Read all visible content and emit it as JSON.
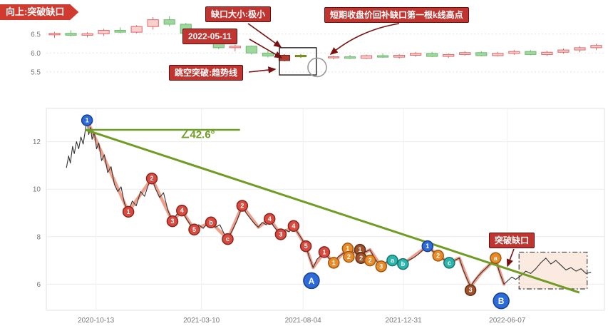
{
  "banner": {
    "text": "向上:突破缺口"
  },
  "top_annotations": {
    "gap_size": "缺口大小:极小",
    "date": "2022-05-11",
    "short_term_note": "短期收盘价回补缺口第一根k线高点",
    "gap_breakthrough": "跳空突破:趋势线"
  },
  "bottom_annotations": {
    "breakout_gap": "突破缺口"
  },
  "colors": {
    "annotation_bg": "#c13530",
    "annotation_border": "#5f1010",
    "candle_up": [
      "#f8d0d0",
      "#e06666"
    ],
    "candle_down": [
      "#9fd89f",
      "#6fb96f"
    ],
    "candle_dark": [
      "#b03a2e",
      "#7b241c"
    ],
    "candle_olive": [
      "#98a832",
      "#6f7d1f"
    ],
    "wave": "#f0957d",
    "price": "#333333",
    "trend": "#6f9c23",
    "marker_red": [
      "#d84b40",
      "#8e221a"
    ],
    "marker_orange": [
      "#e88c2a",
      "#a3560e"
    ],
    "marker_blue": [
      "#2d6bd8",
      "#173f8f"
    ],
    "marker_teal": [
      "#2ab5ad",
      "#15756f"
    ],
    "marker_maroon": [
      "#a0522d",
      "#5e2c12"
    ],
    "gap_box_fill": "#f7d9c4"
  },
  "chart_data": [
    {
      "type": "candlestick",
      "title": "daily k-line with breakaway gap",
      "ylim": [
        4.95,
        7.25
      ],
      "yticks": [
        5.5,
        6.0,
        6.5
      ],
      "ytick_decimals": 1,
      "ohlc_order": [
        "open",
        "high",
        "low",
        "close"
      ],
      "candles": [
        [
          6.48,
          6.56,
          6.4,
          6.52
        ],
        [
          6.52,
          6.6,
          6.44,
          6.47
        ],
        [
          6.47,
          6.55,
          6.41,
          6.51
        ],
        [
          6.51,
          6.64,
          6.45,
          6.6
        ],
        [
          6.6,
          6.68,
          6.52,
          6.55
        ],
        [
          6.55,
          6.74,
          6.52,
          6.7
        ],
        [
          6.7,
          6.95,
          6.62,
          6.88
        ],
        [
          6.88,
          6.97,
          6.7,
          6.76
        ],
        [
          6.76,
          6.8,
          6.48,
          6.52
        ],
        [
          6.52,
          6.56,
          6.24,
          6.28
        ],
        [
          6.28,
          6.34,
          6.1,
          6.14
        ],
        [
          6.14,
          6.22,
          6.04,
          6.18
        ],
        [
          6.18,
          6.2,
          5.96,
          6.0
        ],
        [
          6.0,
          6.06,
          5.88,
          5.92
        ],
        {
          "ohlc": [
            5.94,
            5.97,
            5.78,
            5.8
          ],
          "color": "dark"
        },
        {
          "ohlc": [
            5.9,
            5.97,
            5.87,
            5.94
          ],
          "color": "olive"
        },
        null,
        [
          5.88,
          5.93,
          5.83,
          5.9
        ],
        [
          5.9,
          5.95,
          5.84,
          5.86
        ],
        [
          5.86,
          5.96,
          5.84,
          5.93
        ],
        [
          5.93,
          5.99,
          5.87,
          5.89
        ],
        [
          5.89,
          5.97,
          5.85,
          5.94
        ],
        [
          5.94,
          6.03,
          5.9,
          5.99
        ],
        [
          5.99,
          6.03,
          5.89,
          5.91
        ],
        [
          5.91,
          5.99,
          5.87,
          5.96
        ],
        [
          5.96,
          6.05,
          5.93,
          6.01
        ],
        [
          6.01,
          6.05,
          5.91,
          5.93
        ],
        [
          5.93,
          6.03,
          5.91,
          5.99
        ],
        [
          5.99,
          6.08,
          5.95,
          6.04
        ],
        [
          6.04,
          6.08,
          5.94,
          5.96
        ],
        [
          5.96,
          6.06,
          5.92,
          6.02
        ],
        [
          6.02,
          6.12,
          5.98,
          6.08
        ],
        [
          6.08,
          6.18,
          6.02,
          6.14
        ],
        [
          6.14,
          6.24,
          6.08,
          6.2
        ]
      ],
      "highlight_rect": {
        "slot1": 14.2,
        "slot2": 16.45,
        "v_top": 6.14,
        "v_bot": 5.42
      },
      "highlight_circle": {
        "slot": 16,
        "v": 5.62,
        "r": 13
      }
    },
    {
      "type": "line",
      "title": "weekly trend with elliott wave markers",
      "ylim": [
        4.9,
        13.4
      ],
      "yticks": [
        6,
        8,
        10,
        12
      ],
      "ytick_decimals": 0,
      "xticks": [
        {
          "t": 8.9,
          "label": "2020-10-13"
        },
        {
          "t": 27.8,
          "label": "2021-03-10"
        },
        {
          "t": 46.0,
          "label": "2021-08-04"
        },
        {
          "t": 64.0,
          "label": "2021-12-31"
        },
        {
          "t": 82.6,
          "label": "2022-06-07"
        }
      ],
      "price": [
        [
          3.6,
          10.9
        ],
        [
          4.0,
          11.4
        ],
        [
          4.3,
          11.1
        ],
        [
          4.7,
          11.8
        ],
        [
          5.0,
          11.5
        ],
        [
          5.4,
          12.0
        ],
        [
          5.8,
          11.7
        ],
        [
          6.2,
          12.2
        ],
        [
          6.6,
          11.9
        ],
        [
          7.0,
          12.5
        ],
        [
          7.3,
          12.9
        ],
        [
          7.6,
          12.3
        ],
        [
          7.9,
          12.6
        ],
        [
          8.2,
          12.1
        ],
        [
          8.6,
          12.4
        ],
        [
          9.0,
          11.7
        ],
        [
          9.4,
          11.95
        ],
        [
          9.9,
          11.2
        ],
        [
          10.4,
          11.45
        ],
        [
          11.0,
          10.7
        ],
        [
          11.6,
          10.95
        ],
        [
          12.2,
          10.2
        ],
        [
          12.8,
          9.9
        ],
        [
          13.4,
          10.1
        ],
        [
          14.0,
          9.4
        ],
        [
          14.7,
          9.05
        ],
        [
          15.4,
          9.5
        ],
        [
          16.1,
          9.3
        ],
        [
          16.9,
          9.9
        ],
        [
          17.6,
          9.7
        ],
        [
          18.3,
          10.2
        ],
        [
          18.9,
          10.45
        ],
        [
          19.6,
          10.0
        ],
        [
          20.3,
          9.65
        ],
        [
          21.0,
          9.85
        ],
        [
          21.8,
          9.1
        ],
        [
          22.6,
          8.65
        ],
        [
          23.4,
          8.95
        ],
        [
          24.3,
          9.1
        ],
        [
          25.1,
          8.75
        ],
        [
          25.8,
          8.5
        ],
        [
          26.5,
          8.3
        ],
        [
          27.3,
          8.5
        ],
        [
          28.1,
          8.35
        ],
        [
          28.8,
          8.55
        ],
        [
          29.5,
          8.6
        ],
        [
          30.3,
          8.4
        ],
        [
          31.1,
          8.5
        ],
        [
          31.8,
          8.15
        ],
        [
          32.5,
          7.9
        ],
        [
          33.3,
          8.25
        ],
        [
          34.2,
          8.7
        ],
        [
          35.1,
          9.3
        ],
        [
          35.8,
          9.0
        ],
        [
          36.6,
          8.75
        ],
        [
          37.3,
          8.55
        ],
        [
          38.0,
          8.4
        ],
        [
          38.7,
          8.6
        ],
        [
          39.4,
          8.5
        ],
        [
          40.0,
          8.75
        ],
        [
          40.7,
          8.45
        ],
        [
          41.4,
          8.25
        ],
        [
          42.0,
          8.1
        ],
        [
          42.8,
          8.3
        ],
        [
          43.5,
          8.2
        ],
        [
          44.3,
          8.45
        ],
        [
          45.1,
          8.15
        ],
        [
          45.8,
          7.9
        ],
        [
          46.5,
          7.6
        ],
        [
          47.1,
          7.15
        ],
        [
          47.8,
          6.7
        ],
        [
          48.5,
          7.05
        ],
        [
          49.2,
          7.2
        ],
        [
          49.8,
          7.35
        ],
        [
          50.6,
          7.1
        ],
        [
          51.5,
          6.9
        ],
        [
          52.3,
          7.15
        ],
        [
          53.2,
          7.3
        ],
        [
          54.0,
          7.5
        ],
        [
          54.8,
          7.3
        ],
        [
          55.5,
          7.4
        ],
        [
          56.2,
          7.2
        ],
        [
          57.1,
          7.35
        ],
        [
          58.0,
          7.45
        ],
        [
          58.7,
          7.15
        ],
        [
          59.4,
          6.9
        ],
        [
          60.0,
          6.75
        ],
        [
          60.7,
          6.9
        ],
        [
          61.4,
          7.0
        ],
        [
          62.0,
          7.05
        ],
        [
          62.9,
          6.95
        ],
        [
          63.9,
          6.85
        ],
        [
          64.8,
          7.0
        ],
        [
          65.7,
          7.1
        ],
        [
          66.6,
          7.25
        ],
        [
          67.5,
          7.45
        ],
        [
          68.3,
          7.6
        ],
        [
          69.2,
          7.4
        ],
        [
          70.2,
          7.2
        ],
        [
          71.2,
          7.05
        ],
        [
          72.2,
          6.9
        ],
        [
          73.1,
          7.0
        ],
        [
          74.0,
          7.1
        ],
        [
          74.7,
          6.6
        ],
        [
          75.4,
          6.2
        ],
        [
          76.0,
          5.9
        ],
        [
          76.7,
          6.15
        ],
        [
          77.4,
          6.35
        ],
        [
          78.0,
          6.5
        ],
        [
          78.9,
          6.7
        ],
        [
          79.7,
          6.9
        ],
        [
          80.5,
          7.05
        ],
        [
          81.2,
          6.5
        ],
        [
          82.0,
          6.0
        ],
        [
          82.7,
          6.15
        ],
        [
          83.4,
          6.3
        ],
        [
          84.1,
          6.2
        ],
        [
          85.0,
          6.35
        ],
        [
          85.9,
          6.55
        ],
        [
          86.8,
          6.45
        ],
        [
          87.7,
          6.65
        ],
        [
          88.6,
          6.9
        ],
        [
          89.5,
          7.1
        ],
        [
          90.4,
          6.85
        ],
        [
          91.3,
          7.0
        ],
        [
          92.2,
          6.8
        ],
        [
          93.1,
          6.6
        ],
        [
          94.0,
          6.7
        ],
        [
          94.9,
          6.55
        ],
        [
          95.8,
          6.65
        ],
        [
          96.7,
          6.45
        ],
        [
          97.6,
          6.5
        ]
      ],
      "wave": [
        [
          7.3,
          12.9
        ],
        [
          14.7,
          9.05
        ],
        [
          18.9,
          10.45
        ],
        [
          22.6,
          8.65
        ],
        [
          24.3,
          9.1
        ],
        [
          26.5,
          8.3
        ],
        [
          29.5,
          8.6
        ],
        [
          32.5,
          7.9
        ],
        [
          35.1,
          9.3
        ],
        [
          38.0,
          8.4
        ],
        [
          40.0,
          8.75
        ],
        [
          42.0,
          8.1
        ],
        [
          44.3,
          8.45
        ],
        [
          46.5,
          7.6
        ],
        [
          47.8,
          6.7
        ],
        [
          49.8,
          7.35
        ],
        [
          51.5,
          6.9
        ],
        [
          54.0,
          7.5
        ],
        [
          56.2,
          7.2
        ],
        [
          58.0,
          7.45
        ],
        [
          60.0,
          6.75
        ],
        [
          62.0,
          7.05
        ],
        [
          63.9,
          6.85
        ],
        [
          68.3,
          7.6
        ],
        [
          70.2,
          7.2
        ],
        [
          72.2,
          6.9
        ],
        [
          74.0,
          7.1
        ],
        [
          76.0,
          5.9
        ],
        [
          78.0,
          6.5
        ],
        [
          80.5,
          7.05
        ],
        [
          82.0,
          6.0
        ]
      ],
      "trendline": {
        "t1": 7.0,
        "v1": 12.5,
        "t2": 95.5,
        "v2": 5.65
      },
      "baseline": {
        "t1": 7.0,
        "t2": 34.7,
        "v": 12.5
      },
      "angle": {
        "t": 24.0,
        "v": 12.15,
        "text": "∠42.6°"
      },
      "gap_box": {
        "t1": 84.7,
        "t2": 96.9,
        "v_top": 7.35,
        "v_bot": 5.8
      },
      "markers": [
        {
          "t": 7.3,
          "v": 12.9,
          "label": "1",
          "c": "blue"
        },
        {
          "t": 14.7,
          "v": 9.05,
          "label": "1",
          "c": "red"
        },
        {
          "t": 18.9,
          "v": 10.45,
          "label": "2",
          "c": "red"
        },
        {
          "t": 22.6,
          "v": 8.65,
          "label": "3",
          "c": "red"
        },
        {
          "t": 24.3,
          "v": 9.1,
          "label": "4",
          "c": "red"
        },
        {
          "t": 26.5,
          "v": 8.3,
          "label": "5",
          "c": "red"
        },
        {
          "t": 29.5,
          "v": 8.6,
          "label": "b",
          "c": "red"
        },
        {
          "t": 32.5,
          "v": 7.9,
          "label": "c",
          "c": "red"
        },
        {
          "t": 35.1,
          "v": 9.3,
          "label": "2",
          "c": "red"
        },
        {
          "t": 40.0,
          "v": 8.75,
          "label": "4",
          "c": "red"
        },
        {
          "t": 42.0,
          "v": 8.1,
          "label": "3",
          "c": "red"
        },
        {
          "t": 44.3,
          "v": 8.45,
          "label": "4",
          "c": "red"
        },
        {
          "t": 46.5,
          "v": 7.6,
          "label": "5",
          "c": "red"
        },
        {
          "t": 47.5,
          "v": 6.15,
          "label": "A",
          "c": "blue",
          "big": true
        },
        {
          "t": 49.8,
          "v": 7.35,
          "label": "1",
          "c": "red"
        },
        {
          "t": 51.5,
          "v": 6.9,
          "label": "1",
          "c": "orange"
        },
        {
          "t": 54.0,
          "v": 7.5,
          "label": "1",
          "c": "orange"
        },
        {
          "t": 54.2,
          "v": 7.15,
          "label": "2",
          "c": "orange"
        },
        {
          "t": 56.2,
          "v": 7.45,
          "label": "1",
          "c": "maroon"
        },
        {
          "t": 56.4,
          "v": 7.1,
          "label": "2",
          "c": "maroon"
        },
        {
          "t": 58.0,
          "v": 7.0,
          "label": "2",
          "c": "orange"
        },
        {
          "t": 60.0,
          "v": 6.75,
          "label": "3",
          "c": "orange"
        },
        {
          "t": 62.0,
          "v": 7.0,
          "label": "a",
          "c": "teal"
        },
        {
          "t": 63.9,
          "v": 6.85,
          "label": "b",
          "c": "teal"
        },
        {
          "t": 68.3,
          "v": 7.6,
          "label": "1",
          "c": "blue"
        },
        {
          "t": 70.2,
          "v": 7.2,
          "label": "2",
          "c": "orange"
        },
        {
          "t": 72.2,
          "v": 6.9,
          "label": "c",
          "c": "teal"
        },
        {
          "t": 76.0,
          "v": 5.75,
          "label": "3",
          "c": "maroon"
        },
        {
          "t": 80.5,
          "v": 7.1,
          "label": "a",
          "c": "orange"
        },
        {
          "t": 81.5,
          "v": 5.3,
          "label": "B",
          "c": "blue",
          "big": true
        }
      ]
    }
  ]
}
